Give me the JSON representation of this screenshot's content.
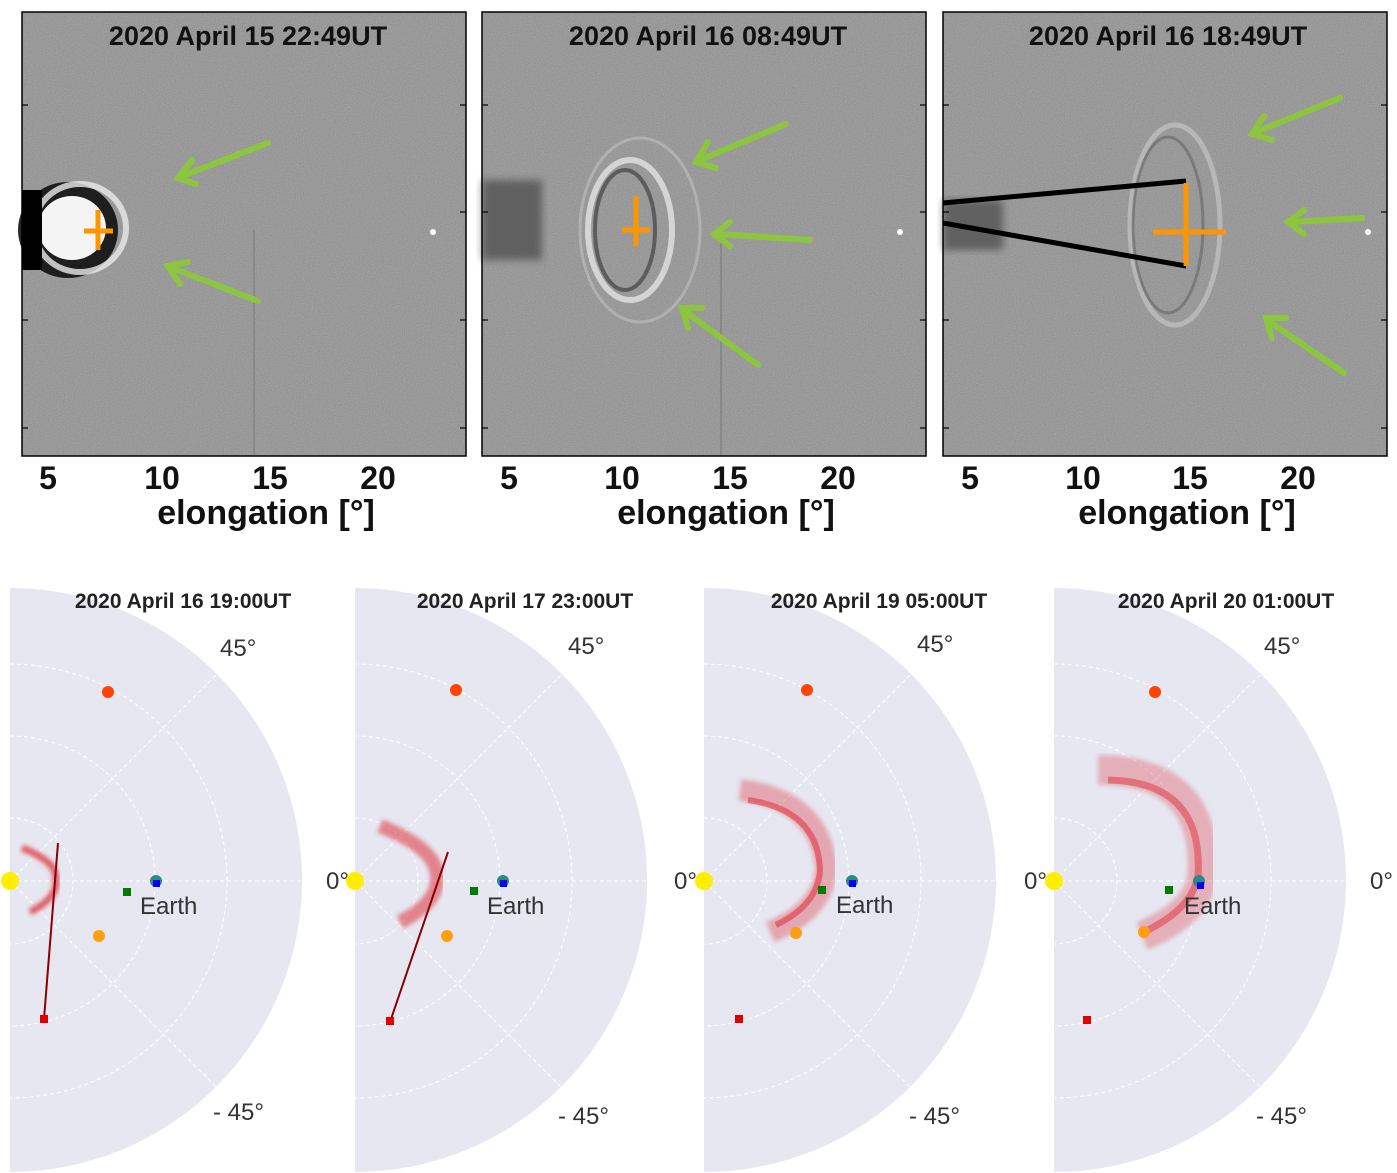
{
  "top_panels": [
    {
      "title": "2020 April 15 22:49UT",
      "x_ticks": [
        "5",
        "10",
        "15",
        "20"
      ],
      "xlabel": "elongation [°]",
      "annotations": {
        "cross": "orange cross",
        "arrows": "green arrows (2)"
      }
    },
    {
      "title": "2020 April 16 08:49UT",
      "x_ticks": [
        "5",
        "10",
        "15",
        "20"
      ],
      "xlabel": "elongation [°]",
      "annotations": {
        "cross": "orange cross",
        "arrows": "green arrows (3)"
      }
    },
    {
      "title": "2020 April 16 18:49UT",
      "x_ticks": [
        "5",
        "10",
        "15",
        "20"
      ],
      "xlabel": "elongation [°]",
      "annotations": {
        "cross": "orange cross",
        "arrows": "green arrows (3)",
        "fov": "black wedge"
      }
    }
  ],
  "bottom_panels": [
    {
      "title": "2020 April 16 19:00UT",
      "label_45": "45°",
      "label_0": "0°",
      "label_m45": "- 45°",
      "earth": "Earth"
    },
    {
      "title": "2020 April 17 23:00UT",
      "label_45": "45°",
      "label_0": "0°",
      "label_m45": "- 45°",
      "earth": "Earth"
    },
    {
      "title": "2020 April 19 05:00UT",
      "label_45": "45°",
      "label_0": "0°",
      "label_m45": "- 45°",
      "earth": "Earth"
    },
    {
      "title": "2020 April 20 01:00UT",
      "label_45": "45°",
      "label_0": "0°",
      "label_m45": "- 45°",
      "earth": "Earth"
    }
  ],
  "colors": {
    "image_bg": "#8a8a8a",
    "polar_bg": "#e6e7f1",
    "arrow": "#8cc63f",
    "cross": "#ff9500",
    "cme": "#e0303a",
    "mercury": "#ff4500",
    "venus": "#ff9e10",
    "earth": "#2a8c7c",
    "l1_marker": "#0000ff",
    "green_sc": "#007a00",
    "red_sc": "#e00000",
    "line": "#8b0000",
    "sun": "#ffee00"
  }
}
